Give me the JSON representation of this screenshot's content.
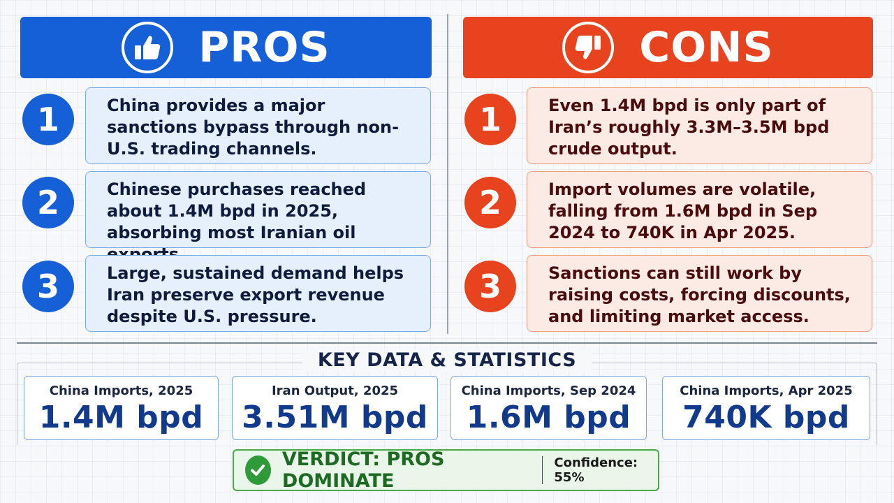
{
  "colors": {
    "pros_accent": "#1560d6",
    "cons_accent": "#e8431f",
    "verdict_green": "#2e9a3a"
  },
  "pros": {
    "title": "PROS",
    "icon": "thumbs-up-icon",
    "items": [
      {
        "number": "1",
        "text": "China provides a major sanctions bypass through non-U.S. trading channels."
      },
      {
        "number": "2",
        "text": "Chinese purchases reached about 1.4M bpd in 2025, absorbing most Iranian oil exports."
      },
      {
        "number": "3",
        "text": "Large, sustained demand helps Iran preserve export revenue despite U.S. pressure."
      }
    ]
  },
  "cons": {
    "title": "CONS",
    "icon": "thumbs-down-icon",
    "items": [
      {
        "number": "1",
        "text": "Even 1.4M bpd is only part of Iran’s roughly 3.3M–3.5M bpd crude output."
      },
      {
        "number": "2",
        "text": "Import volumes are volatile, falling from 1.6M bpd in Sep 2024 to 740K in Apr 2025."
      },
      {
        "number": "3",
        "text": "Sanctions can still work by raising costs, forcing discounts, and limiting market access."
      }
    ]
  },
  "stats": {
    "heading": "KEY DATA & STATISTICS",
    "items": [
      {
        "label": "China Imports, 2025",
        "value": "1.4M bpd"
      },
      {
        "label": "Iran Output, 2025",
        "value": "3.51M bpd"
      },
      {
        "label": "China Imports, Sep 2024",
        "value": "1.6M bpd"
      },
      {
        "label": "China Imports, Apr 2025",
        "value": "740K bpd"
      }
    ]
  },
  "verdict": {
    "icon": "checkmark-icon",
    "text": "VERDICT: PROS DOMINATE",
    "confidence": "Confidence: 55%"
  }
}
